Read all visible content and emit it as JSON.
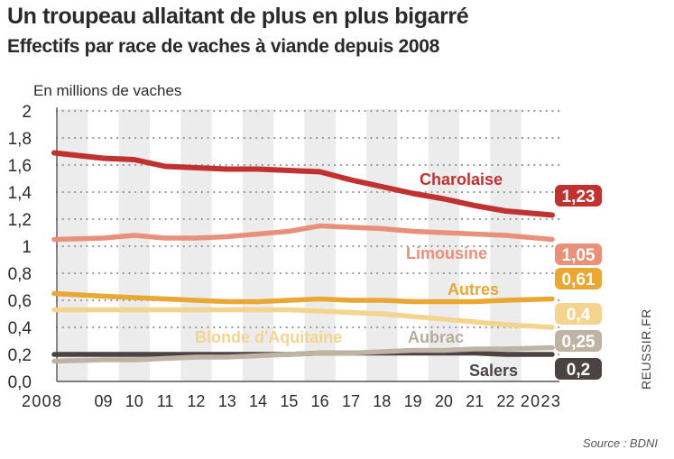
{
  "header": {
    "title": "Un troupeau allaitant de plus en plus bigarré",
    "subtitle": "Effectifs par race de vaches à viande depuis 2008"
  },
  "footer": {
    "source": "Source : BDNI",
    "credit": "REUSSIR.FR"
  },
  "chart_data": {
    "type": "line",
    "title": "Un troupeau allaitant de plus en plus bigarré",
    "subtitle": "Effectifs par race de vaches à viande depuis 2008",
    "ylabel": "En millions de vaches",
    "xlabel": "",
    "ylim": [
      0,
      2
    ],
    "yticks": [
      0,
      0.2,
      0.4,
      0.6,
      0.8,
      1,
      1.2,
      1.4,
      1.6,
      1.8,
      2
    ],
    "ytick_labels": [
      "0,0",
      "0,2",
      "0,4",
      "0,6",
      "0,8",
      "1",
      "1,2",
      "1,4",
      "1,6",
      "1,8",
      "2"
    ],
    "categories": [
      "2008",
      "09",
      "10",
      "11",
      "12",
      "13",
      "14",
      "15",
      "16",
      "17",
      "18",
      "19",
      "20",
      "21",
      "22",
      "2023"
    ],
    "grid": true,
    "series": [
      {
        "name": "Charolaise",
        "color": "#c0312f",
        "end_label": "1,23",
        "values": [
          1.69,
          1.65,
          1.64,
          1.59,
          1.58,
          1.57,
          1.57,
          1.56,
          1.55,
          1.49,
          1.44,
          1.39,
          1.35,
          1.3,
          1.26,
          1.23
        ]
      },
      {
        "name": "Limousine",
        "color": "#e8907a",
        "end_label": "1,05",
        "values": [
          1.05,
          1.06,
          1.08,
          1.06,
          1.06,
          1.07,
          1.09,
          1.11,
          1.15,
          1.14,
          1.13,
          1.11,
          1.1,
          1.09,
          1.08,
          1.05
        ]
      },
      {
        "name": "Autres",
        "color": "#e9a733",
        "end_label": "0,61",
        "values": [
          0.65,
          0.63,
          0.62,
          0.61,
          0.6,
          0.59,
          0.59,
          0.6,
          0.61,
          0.6,
          0.6,
          0.59,
          0.59,
          0.59,
          0.6,
          0.61
        ]
      },
      {
        "name": "Blonde d'Aquitaine",
        "color": "#f5d48f",
        "end_label": "0,4",
        "values": [
          0.53,
          0.53,
          0.53,
          0.53,
          0.53,
          0.53,
          0.53,
          0.53,
          0.52,
          0.51,
          0.5,
          0.48,
          0.46,
          0.44,
          0.42,
          0.4
        ]
      },
      {
        "name": "Aubrac",
        "color": "#bfb3a3",
        "end_label": "0,25",
        "values": [
          0.15,
          0.16,
          0.16,
          0.17,
          0.18,
          0.18,
          0.19,
          0.2,
          0.21,
          0.21,
          0.22,
          0.23,
          0.23,
          0.24,
          0.24,
          0.25
        ]
      },
      {
        "name": "Salers",
        "color": "#4a4342",
        "end_label": "0,2",
        "values": [
          0.2,
          0.2,
          0.2,
          0.2,
          0.2,
          0.2,
          0.2,
          0.2,
          0.21,
          0.21,
          0.21,
          0.21,
          0.21,
          0.21,
          0.2,
          0.2
        ]
      }
    ]
  }
}
